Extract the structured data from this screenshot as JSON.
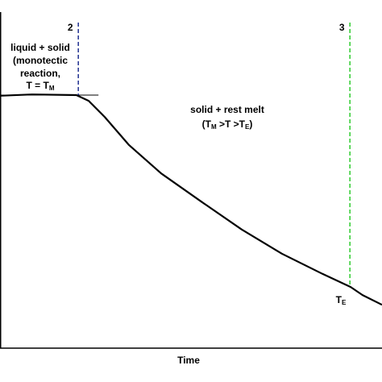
{
  "chart_data": {
    "type": "line",
    "x_label": "Time",
    "x": [
      0,
      8.4,
      20,
      23.2,
      27.4,
      33.8,
      42.2,
      52.7,
      63.3,
      73.8,
      84.4,
      91.8,
      94.9,
      100
    ],
    "values": [
      75.1,
      75.5,
      75.3,
      73.6,
      68.8,
      60.4,
      52,
      43.6,
      35.3,
      28.1,
      22.1,
      18.2,
      15.8,
      12.9
    ],
    "color": "#000000",
    "xlim": [
      0,
      100
    ],
    "ylim": [
      0,
      100
    ],
    "markers": [
      {
        "label": "2",
        "x": 20.5,
        "color": "#1f2f8f"
      },
      {
        "label": "3",
        "x": 91.6,
        "color": "#2ecc2e"
      }
    ],
    "annotations": [
      {
        "lines": [
          "liquid + solid",
          "(monotectic",
          "reaction,"
        ],
        "formula": {
          "text": "T = T",
          "sub": "M"
        }
      },
      {
        "lines": [
          "solid + rest melt"
        ],
        "formula": {
          "open": "(T",
          "sub1": "M",
          "mid": " >T >T",
          "sub2": "E",
          "close": ")"
        }
      },
      {
        "text": "T",
        "sub": "E"
      }
    ]
  }
}
